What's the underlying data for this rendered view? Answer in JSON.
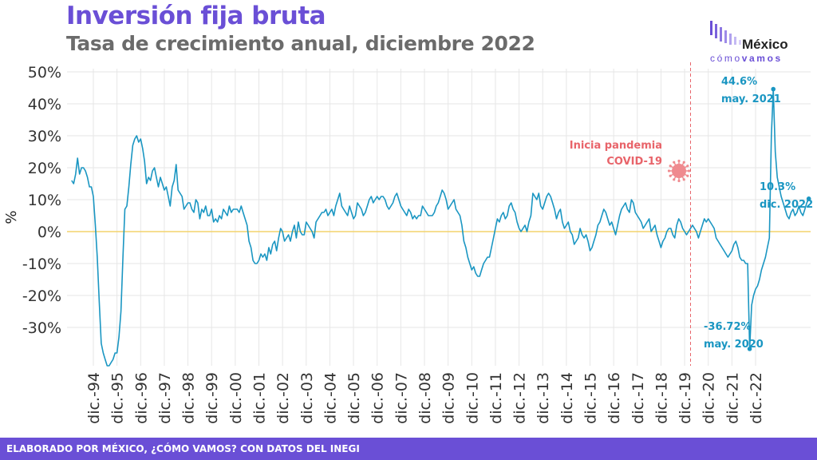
{
  "header": {
    "title": "Inversión fija bruta",
    "subtitle": "Tasa de crecimiento anual, diciembre 2022"
  },
  "logo": {
    "word": "México",
    "sub": "cómovamos",
    "sub_parts": [
      "cómo",
      "vamos"
    ]
  },
  "footer": {
    "credit": "ELABORADO POR MÉXICO, ¿CÓMO VAMOS? CON DATOS DEL INEGI"
  },
  "chart_data": {
    "type": "line",
    "ylabel": "%",
    "ylim": [
      -42,
      51
    ],
    "yticks": [
      50,
      40,
      30,
      20,
      10,
      0,
      -10,
      -20,
      -30
    ],
    "ytick_labels": [
      "50%",
      "40%",
      "30%",
      "20%",
      "10%",
      "0%",
      "-10%",
      "-20%",
      "-30%"
    ],
    "xtick_labels": [
      "dic.-94",
      "dic.-95",
      "dic.-96",
      "dic.-97",
      "dic.-98",
      "dic.-99",
      "dic.-00",
      "dic.-01",
      "dic.-02",
      "dic.-03",
      "dic.-04",
      "dic.-05",
      "dic.-06",
      "dic.-07",
      "dic.-08",
      "dic.-09",
      "dic.-10",
      "dic.-11",
      "dic.-12",
      "dic.-13",
      "dic.-14",
      "dic.-15",
      "dic.-16",
      "dic.-17",
      "dic.-18",
      "dic.-19",
      "dic.-20",
      "dic.-21",
      "dic.-22"
    ],
    "grid": true,
    "colors": {
      "line": "#1a96c2",
      "zero": "#f3d36b",
      "grid": "#e6e6e6",
      "pandemic": "#e8646a",
      "title": "#6a4fd6"
    },
    "series": [
      {
        "name": "",
        "x_start": "1994-01",
        "values": [
          16,
          15,
          18,
          23,
          18,
          20,
          20,
          19,
          17,
          14,
          14,
          11,
          2,
          -8,
          -22,
          -35,
          -38,
          -40,
          -42,
          -42,
          -41,
          -40,
          -38,
          -38,
          -33,
          -25,
          -8,
          7,
          8,
          14,
          21,
          27,
          29,
          30,
          28,
          29,
          26,
          22,
          15,
          17,
          16,
          19,
          20,
          17,
          14,
          17,
          15,
          13,
          14,
          11,
          8,
          14,
          16,
          21,
          13,
          12,
          11,
          7,
          8,
          9,
          9,
          7,
          6,
          10,
          9,
          4,
          7,
          6,
          8,
          5,
          5,
          7,
          3,
          4,
          3,
          5,
          4,
          7,
          6,
          5,
          8,
          6,
          7,
          7,
          7,
          6,
          8,
          6,
          4,
          2,
          -3,
          -5,
          -9,
          -10,
          -10,
          -9,
          -7,
          -8,
          -7,
          -9,
          -5,
          -7,
          -4,
          -3,
          -6,
          -2,
          1,
          0,
          -3,
          -2,
          -1,
          -3,
          0,
          2,
          -2,
          3,
          0,
          -1,
          -1,
          3,
          2,
          1,
          0,
          -2,
          3,
          4,
          5,
          6,
          6,
          7,
          5,
          6,
          7,
          5,
          8,
          10,
          12,
          8,
          7,
          6,
          5,
          8,
          6,
          4,
          5,
          9,
          8,
          7,
          5,
          6,
          8,
          10,
          11,
          9,
          10,
          11,
          10,
          11,
          11,
          10,
          8,
          7,
          8,
          9,
          11,
          12,
          10,
          8,
          7,
          6,
          5,
          7,
          6,
          4,
          5,
          4,
          5,
          5,
          8,
          7,
          6,
          5,
          5,
          5,
          6,
          8,
          9,
          11,
          13,
          12,
          10,
          7,
          8,
          9,
          10,
          7,
          6,
          5,
          2,
          -3,
          -5,
          -8,
          -10,
          -12,
          -11,
          -13,
          -14,
          -14,
          -12,
          -10,
          -9,
          -8,
          -8,
          -5,
          -2,
          1,
          4,
          3,
          5,
          6,
          4,
          5,
          8,
          9,
          7,
          6,
          3,
          1,
          0,
          1,
          2,
          0,
          3,
          5,
          12,
          11,
          10,
          12,
          8,
          7,
          9,
          11,
          12,
          11,
          9,
          7,
          4,
          6,
          7,
          3,
          1,
          2,
          3,
          0,
          -1,
          -4,
          -3,
          -2,
          1,
          -1,
          -2,
          -1,
          -3,
          -6,
          -5,
          -3,
          -1,
          2,
          3,
          5,
          7,
          6,
          4,
          2,
          3,
          1,
          -1,
          2,
          5,
          7,
          8,
          9,
          7,
          6,
          10,
          9,
          6,
          5,
          4,
          3,
          1,
          2,
          3,
          4,
          0,
          1,
          2,
          -1,
          -3,
          -5,
          -3,
          -2,
          0,
          1,
          1,
          -1,
          -2,
          2,
          4,
          3,
          1,
          0,
          -1,
          0,
          1,
          2,
          1,
          0,
          -2,
          0,
          2,
          4,
          3,
          4,
          3,
          2,
          1,
          -2,
          -3,
          -4,
          -5,
          -6,
          -7,
          -8,
          -7,
          -6,
          -4,
          -3,
          -5,
          -8,
          -9,
          -9,
          -10,
          -10,
          -36.72,
          -23,
          -20,
          -18,
          -17,
          -15,
          -12,
          -10,
          -8,
          -5,
          -2,
          30,
          44.6,
          25,
          17,
          14,
          11,
          9,
          7,
          5,
          4,
          6,
          7,
          5,
          6,
          8,
          6,
          5,
          7,
          9,
          10.3
        ]
      }
    ],
    "annotations": {
      "min": {
        "value_label": "-36.72%",
        "date_label": "may. 2020",
        "value": -36.72
      },
      "max": {
        "value_label": "44.6%",
        "date_label": "may. 2021",
        "value": 44.6
      },
      "last": {
        "value_label": "10.3%",
        "date_label": "dic. 2022",
        "value": 10.3
      },
      "pandemic": {
        "line1": "Inicia pandemia",
        "line2": "COVID-19",
        "date": "2020-03"
      }
    }
  }
}
